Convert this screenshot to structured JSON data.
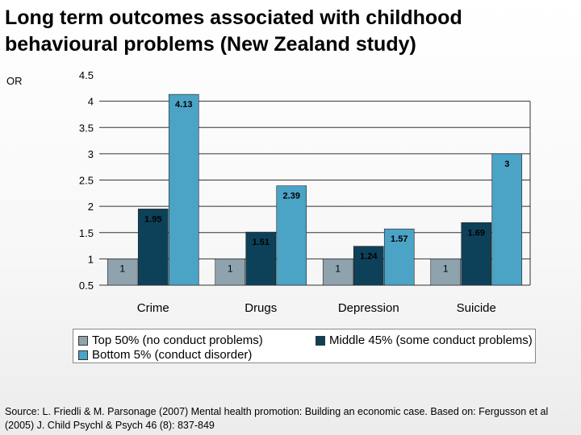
{
  "title": "Long term outcomes associated with childhood behavioural problems (New Zealand study)",
  "source": "Source: L. Friedli & M. Parsonage (2007) Mental health promotion: Building an economic case. Based on: Fergusson et al (2005)  J. Child Psychl & Psych 46 (8): 837-849",
  "chart_data": {
    "type": "bar",
    "title": "Long term outcomes associated with childhood behavioural problems (New Zealand study)",
    "ylabel": "OR",
    "xlabel": "",
    "ylim": [
      0.5,
      4.5
    ],
    "yticks": [
      "4.5",
      "4",
      "3.5",
      "3",
      "2.5",
      "2",
      "1.5",
      "1",
      "0.5"
    ],
    "grid": true,
    "legend_position": "bottom",
    "categories": [
      "Crime",
      "Drugs",
      "Depression",
      "Suicide"
    ],
    "series": [
      {
        "name": "Top 50% (no conduct problems)",
        "color": "#8fa3ae",
        "values": [
          1,
          1,
          1,
          1
        ],
        "labels": [
          "1",
          "1",
          "1",
          "1"
        ]
      },
      {
        "name": "Middle 45% (some conduct problems)",
        "color": "#0d4159",
        "values": [
          1.95,
          1.51,
          1.24,
          1.69
        ],
        "labels": [
          "1.95",
          "1.51",
          "1.24",
          "1.69"
        ]
      },
      {
        "name": "Bottom 5% (conduct disorder)",
        "color": "#4ba3c6",
        "values": [
          4.13,
          2.39,
          1.57,
          3
        ],
        "labels": [
          "4.13",
          "2.39",
          "1.57",
          "3"
        ]
      }
    ]
  }
}
